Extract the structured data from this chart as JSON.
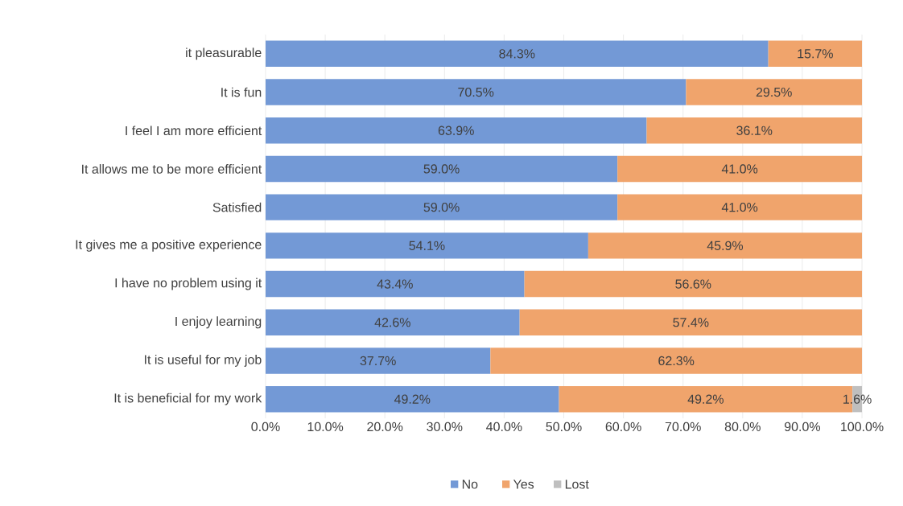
{
  "chart_data": {
    "type": "bar",
    "orientation": "horizontal",
    "stacked": true,
    "categories": [
      "it pleasurable",
      "It is fun",
      "I feel I am more efficient",
      "It allows me to be more efficient",
      "Satisfied",
      "It gives me a positive experience",
      "I have no problem using it",
      "I enjoy learning",
      "It is useful for my job",
      "It is beneficial for my work"
    ],
    "series": [
      {
        "name": "No",
        "color": "#7399d6",
        "values": [
          84.3,
          70.5,
          63.9,
          59.0,
          59.0,
          54.1,
          43.4,
          42.6,
          37.7,
          49.2
        ],
        "value_labels": [
          "84.3%",
          "70.5%",
          "63.9%",
          "59.0%",
          "59.0%",
          "54.1%",
          "43.4%",
          "42.6%",
          "37.7%",
          "49.2%"
        ]
      },
      {
        "name": "Yes",
        "color": "#f0a46c",
        "values": [
          15.7,
          29.5,
          36.1,
          41.0,
          41.0,
          45.9,
          56.6,
          57.4,
          62.3,
          49.2
        ],
        "value_labels": [
          "15.7%",
          "29.5%",
          "36.1%",
          "41.0%",
          "41.0%",
          "45.9%",
          "56.6%",
          "57.4%",
          "62.3%",
          "49.2%"
        ]
      },
      {
        "name": "Lost",
        "color": "#bfbfbf",
        "values": [
          null,
          null,
          null,
          null,
          null,
          null,
          null,
          null,
          null,
          1.6
        ],
        "value_labels": [
          null,
          null,
          null,
          null,
          null,
          null,
          null,
          null,
          null,
          "1.6%"
        ]
      }
    ],
    "xlim": [
      0,
      100
    ],
    "xticks": [
      {
        "value": 0,
        "label": "0.0%"
      },
      {
        "value": 10,
        "label": "10.0%"
      },
      {
        "value": 20,
        "label": "20.0%"
      },
      {
        "value": 30,
        "label": "30.0%"
      },
      {
        "value": 40,
        "label": "40.0%"
      },
      {
        "value": 50,
        "label": "50.0%"
      },
      {
        "value": 60,
        "label": "60.0%"
      },
      {
        "value": 70,
        "label": "70.0%"
      },
      {
        "value": 80,
        "label": "80.0%"
      },
      {
        "value": 90,
        "label": "90.0%"
      },
      {
        "value": 100,
        "label": "100.0%"
      }
    ],
    "grid": "x",
    "legend": "bottom"
  }
}
